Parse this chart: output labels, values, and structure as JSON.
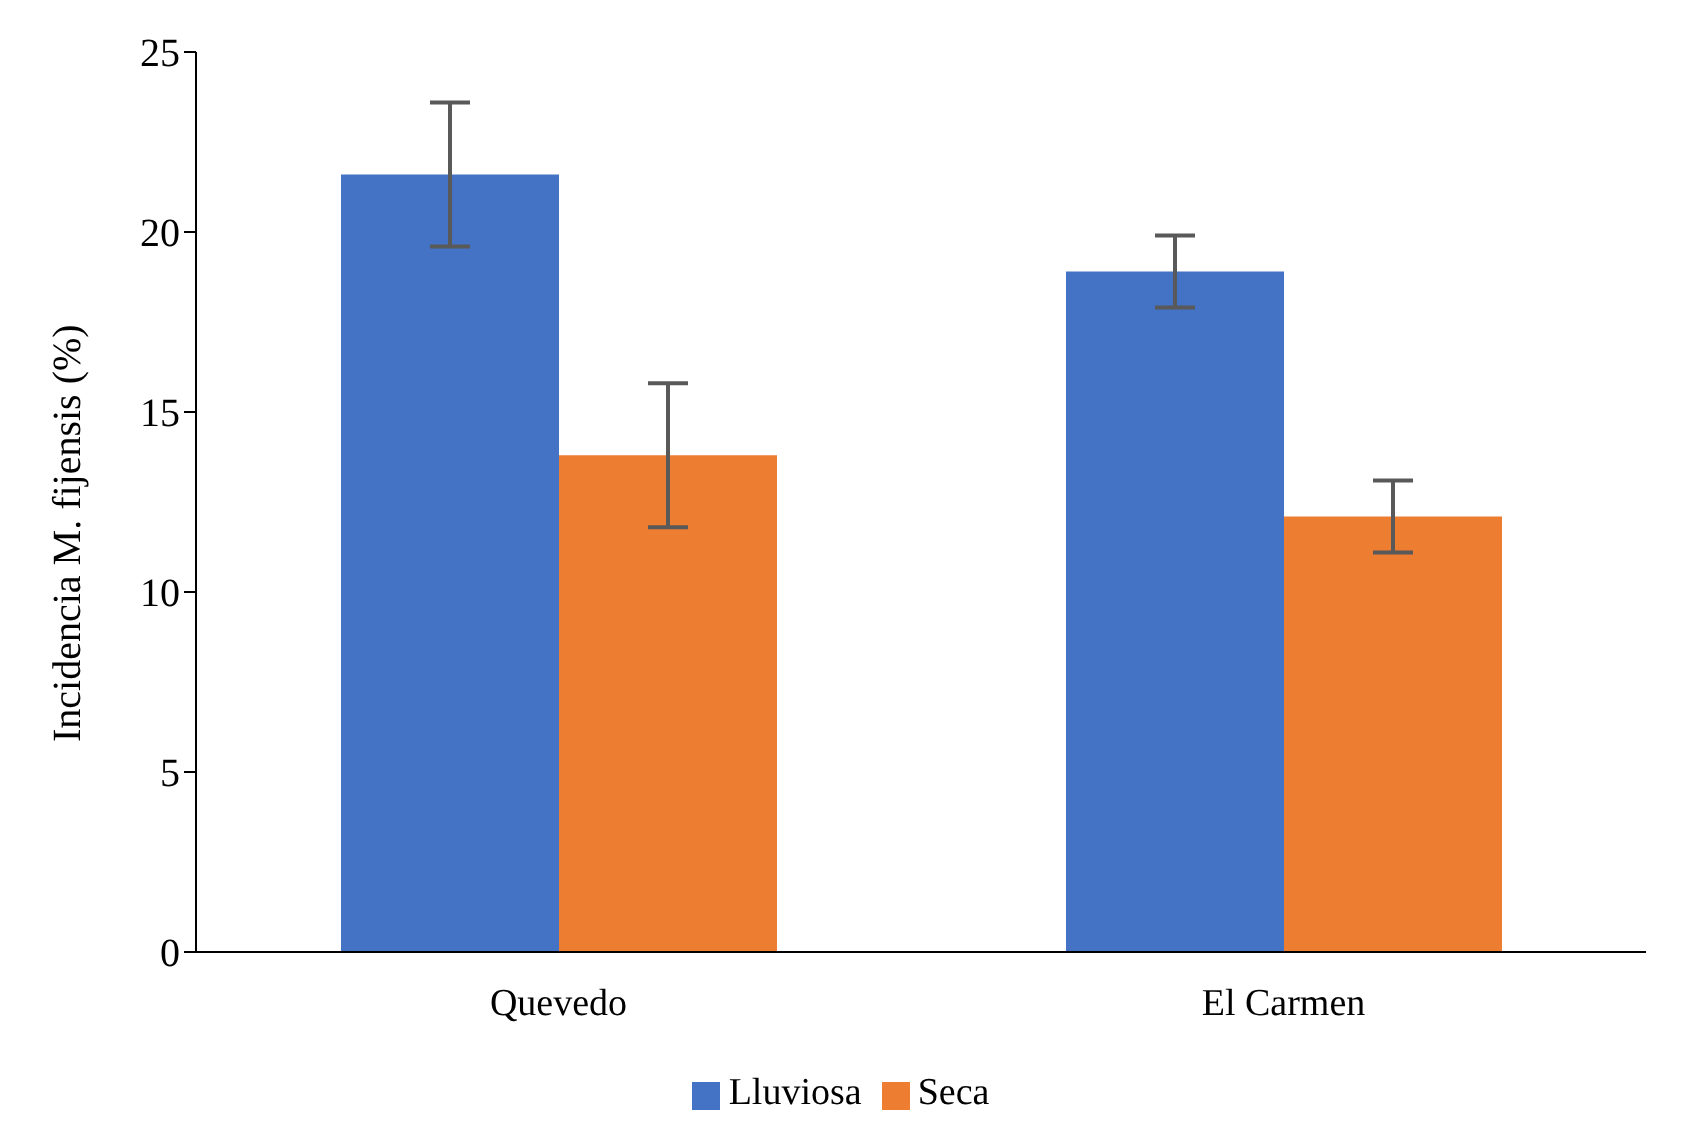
{
  "chart_data": {
    "type": "bar",
    "ylabel": "Incidencia M. fijensis (%)",
    "categories": [
      "Quevedo",
      "El Carmen"
    ],
    "series": [
      {
        "name": "Lluviosa",
        "color": "#4472c4",
        "values": [
          21.6,
          18.9
        ],
        "errors": [
          2.0,
          1.0
        ]
      },
      {
        "name": "Seca",
        "color": "#ed7d31",
        "values": [
          13.8,
          12.1
        ],
        "errors": [
          2.0,
          1.0
        ]
      }
    ],
    "ylim": [
      0,
      25
    ],
    "yticks": [
      0,
      5,
      10,
      15,
      20,
      25
    ],
    "grid": false,
    "legend": "bottom"
  }
}
